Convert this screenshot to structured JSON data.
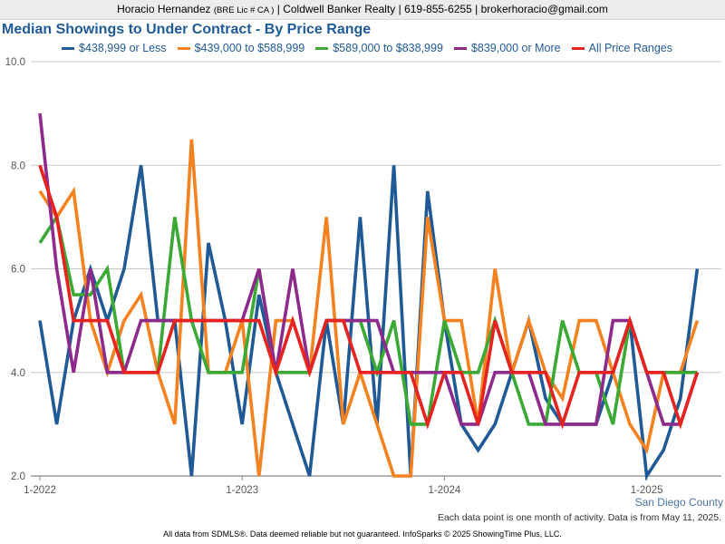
{
  "header": {
    "name": "Horacio Hernandez",
    "license": "(BRE Lic # CA )",
    "brokerage": "| Coldwell Banker Realty |",
    "phone": "619-855-6255",
    "sep": "|",
    "email": "brokerhoracio@gmail.com"
  },
  "footer": {
    "region": "San Diego County",
    "note": "Each data point is one month of activity. Data is from May 11, 2025.",
    "disclaimer": "All data from SDMLS®. Data deemed reliable but not guaranteed. InfoSparks © 2025 ShowingTime Plus, LLC."
  },
  "chart_data": {
    "type": "line",
    "title": "Median Showings to Under Contract - By Price Range",
    "xlabel": "",
    "ylabel": "",
    "ylim": [
      2.0,
      10.0
    ],
    "yticks": [
      "2.0",
      "4.0",
      "6.0",
      "8.0",
      "10.0"
    ],
    "grid": true,
    "legend_position": "top",
    "xtick_labels": [
      {
        "index": 0,
        "label": "1-2022"
      },
      {
        "index": 12,
        "label": "1-2023"
      },
      {
        "index": 24,
        "label": "1-2024"
      },
      {
        "index": 36,
        "label": "1-2025"
      }
    ],
    "x": [
      "1-2022",
      "2-2022",
      "3-2022",
      "4-2022",
      "5-2022",
      "6-2022",
      "7-2022",
      "8-2022",
      "9-2022",
      "10-2022",
      "11-2022",
      "12-2022",
      "1-2023",
      "2-2023",
      "3-2023",
      "4-2023",
      "5-2023",
      "6-2023",
      "7-2023",
      "8-2023",
      "9-2023",
      "10-2023",
      "11-2023",
      "12-2023",
      "1-2024",
      "2-2024",
      "3-2024",
      "4-2024",
      "5-2024",
      "6-2024",
      "7-2024",
      "8-2024",
      "9-2024",
      "10-2024",
      "11-2024",
      "12-2024",
      "1-2025",
      "2-2025",
      "3-2025",
      "4-2025"
    ],
    "series": [
      {
        "name": "$438,999 or Less",
        "color": "#1f5a96",
        "values": [
          5,
          3,
          5,
          6,
          5,
          6,
          8,
          5,
          5,
          2,
          6.5,
          5,
          3,
          5.5,
          4,
          3,
          2,
          5,
          3,
          7,
          3,
          8,
          2,
          7.5,
          5,
          3,
          2.5,
          3,
          4,
          5,
          3.5,
          3,
          3,
          3,
          4,
          5,
          2,
          2.5,
          3.5,
          6
        ]
      },
      {
        "name": "$439,000 to $588,999",
        "color": "#f5821f",
        "values": [
          7.5,
          7,
          7.5,
          5,
          4,
          5,
          5.5,
          4,
          3,
          8.5,
          4,
          4,
          5,
          2,
          5,
          5,
          4,
          7,
          3,
          4,
          3,
          2,
          2,
          7,
          5,
          5,
          3,
          6,
          4,
          5,
          4,
          3.5,
          5,
          5,
          4,
          3,
          2.5,
          4,
          4,
          5
        ]
      },
      {
        "name": "$589,000 to $838,999",
        "color": "#3aaa35",
        "values": [
          6.5,
          7,
          5.5,
          5.5,
          6,
          4,
          4,
          4,
          7,
          5,
          4,
          4,
          4,
          6,
          4,
          4,
          4,
          5,
          5,
          5,
          4,
          5,
          3,
          3,
          5,
          4,
          4,
          5,
          4,
          3,
          3,
          5,
          4,
          4,
          3,
          5,
          4,
          4,
          4,
          4
        ]
      },
      {
        "name": "$839,000 or More",
        "color": "#8e2a8c",
        "values": [
          9,
          6,
          4,
          6,
          4,
          4,
          5,
          5,
          5,
          5,
          5,
          5,
          5,
          6,
          4,
          6,
          4,
          5,
          5,
          5,
          5,
          4,
          4,
          4,
          4,
          3,
          3,
          4,
          4,
          4,
          3,
          3,
          3,
          3,
          5,
          5,
          4,
          3,
          3,
          4
        ]
      },
      {
        "name": "All Price Ranges",
        "color": "#e8231f",
        "values": [
          8,
          7,
          5,
          5,
          5,
          4,
          4,
          4,
          5,
          5,
          5,
          5,
          5,
          5,
          4,
          5,
          4,
          5,
          5,
          4,
          4,
          4,
          4,
          3,
          4,
          4,
          3,
          5,
          4,
          4,
          4,
          3,
          4,
          4,
          4,
          5,
          4,
          4,
          3,
          4
        ]
      }
    ]
  }
}
